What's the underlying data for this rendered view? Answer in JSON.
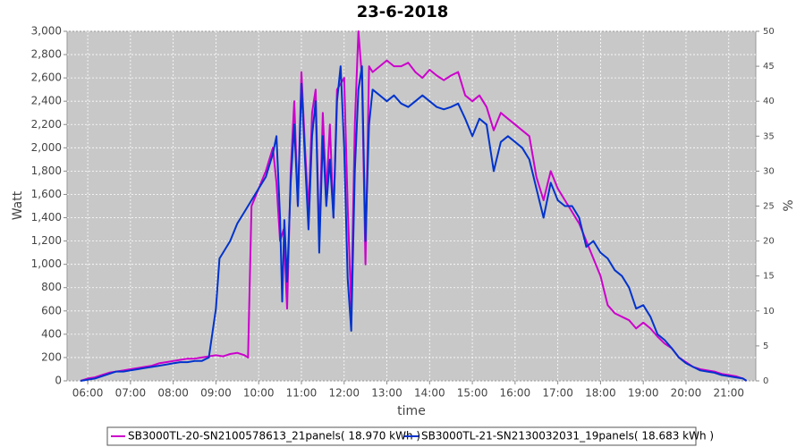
{
  "chart_data": {
    "type": "line",
    "title": "23-6-2018",
    "x_label": "time",
    "y_label": "Watt",
    "y2_label": "%",
    "xlim": [
      "05:31",
      "21:38"
    ],
    "xticks": [
      "06:00",
      "07:00",
      "08:00",
      "09:00",
      "10:00",
      "11:00",
      "12:00",
      "13:00",
      "14:00",
      "15:00",
      "16:00",
      "17:00",
      "18:00",
      "19:00",
      "20:00",
      "21:00"
    ],
    "ylim": [
      0,
      3000
    ],
    "yticks": [
      0,
      200,
      400,
      600,
      800,
      {
        "value": 1000,
        "label": "1,000"
      },
      {
        "value": 1200,
        "label": "1,200"
      },
      {
        "value": 1400,
        "label": "1,400"
      },
      {
        "value": 1600,
        "label": "1,600"
      },
      {
        "value": 1800,
        "label": "1,800"
      },
      {
        "value": 2000,
        "label": "2,000"
      },
      {
        "value": 2200,
        "label": "2,200"
      },
      {
        "value": 2400,
        "label": "2,400"
      },
      {
        "value": 2600,
        "label": "2,600"
      },
      {
        "value": 2800,
        "label": "2,800"
      },
      {
        "value": 3000,
        "label": "3,000"
      }
    ],
    "y2lim": [
      0,
      50
    ],
    "y2ticks": [
      0,
      5,
      10,
      15,
      20,
      25,
      30,
      35,
      40,
      45,
      50
    ],
    "grid": true,
    "legend": "bottom",
    "series": [
      {
        "name": "SB3000TL-20-SN2100578613_21panels( 18.970 kWh )",
        "color": "#cc00cc",
        "x": [
          "05:50",
          "06:00",
          "06:10",
          "06:20",
          "06:30",
          "06:40",
          "06:50",
          "07:00",
          "07:10",
          "07:20",
          "07:30",
          "07:40",
          "07:50",
          "08:00",
          "08:10",
          "08:20",
          "08:30",
          "08:40",
          "08:50",
          "09:00",
          "09:10",
          "09:20",
          "09:30",
          "09:40",
          "09:45",
          "09:50",
          "10:00",
          "10:10",
          "10:20",
          "10:25",
          "10:30",
          "10:35",
          "10:40",
          "10:45",
          "10:50",
          "10:55",
          "11:00",
          "11:05",
          "11:10",
          "11:15",
          "11:20",
          "11:25",
          "11:30",
          "11:35",
          "11:40",
          "11:45",
          "11:50",
          "12:00",
          "12:05",
          "12:10",
          "12:15",
          "12:20",
          "12:25",
          "12:30",
          "12:35",
          "12:40",
          "12:50",
          "13:00",
          "13:10",
          "13:20",
          "13:30",
          "13:40",
          "13:50",
          "14:00",
          "14:10",
          "14:20",
          "14:30",
          "14:40",
          "14:50",
          "15:00",
          "15:10",
          "15:20",
          "15:30",
          "15:40",
          "15:50",
          "16:00",
          "16:10",
          "16:20",
          "16:30",
          "16:40",
          "16:50",
          "17:00",
          "17:10",
          "17:20",
          "17:30",
          "17:40",
          "17:50",
          "18:00",
          "18:10",
          "18:20",
          "18:30",
          "18:40",
          "18:50",
          "19:00",
          "19:10",
          "19:20",
          "19:30",
          "19:40",
          "19:50",
          "20:00",
          "20:10",
          "20:20",
          "20:30",
          "20:40",
          "20:50",
          "21:00",
          "21:10",
          "21:20",
          "21:25"
        ],
        "values": [
          0,
          20,
          30,
          50,
          70,
          80,
          90,
          100,
          110,
          120,
          130,
          150,
          160,
          170,
          180,
          190,
          190,
          200,
          210,
          220,
          210,
          230,
          240,
          220,
          200,
          1500,
          1650,
          1800,
          2000,
          1700,
          1200,
          1300,
          620,
          1800,
          2400,
          1500,
          2650,
          2000,
          1450,
          2300,
          2500,
          1200,
          2300,
          1600,
          2200,
          1400,
          2500,
          2600,
          1500,
          620,
          2200,
          3000,
          2600,
          1000,
          2700,
          2650,
          2700,
          2750,
          2700,
          2700,
          2730,
          2650,
          2600,
          2670,
          2620,
          2580,
          2620,
          2650,
          2450,
          2400,
          2450,
          2350,
          2150,
          2300,
          2250,
          2200,
          2150,
          2100,
          1750,
          1550,
          1800,
          1650,
          1550,
          1450,
          1350,
          1200,
          1050,
          900,
          650,
          580,
          550,
          520,
          450,
          500,
          450,
          380,
          320,
          280,
          200,
          160,
          120,
          100,
          90,
          80,
          60,
          50,
          40,
          20,
          0
        ]
      },
      {
        "name": "SB3000TL-21-SN2130032031_19panels( 18.683 kWh )",
        "color": "#0033cc",
        "x": [
          "05:50",
          "06:00",
          "06:10",
          "06:20",
          "06:30",
          "06:40",
          "06:50",
          "07:00",
          "07:10",
          "07:20",
          "07:30",
          "07:40",
          "07:50",
          "08:00",
          "08:10",
          "08:20",
          "08:30",
          "08:40",
          "08:50",
          "09:00",
          "09:05",
          "09:10",
          "09:20",
          "09:30",
          "09:40",
          "09:50",
          "10:00",
          "10:10",
          "10:20",
          "10:25",
          "10:30",
          "10:33",
          "10:36",
          "10:40",
          "10:45",
          "10:50",
          "10:55",
          "11:00",
          "11:05",
          "11:10",
          "11:15",
          "11:20",
          "11:25",
          "11:30",
          "11:35",
          "11:40",
          "11:45",
          "11:50",
          "11:55",
          "12:00",
          "12:05",
          "12:10",
          "12:15",
          "12:20",
          "12:25",
          "12:30",
          "12:35",
          "12:40",
          "12:50",
          "13:00",
          "13:10",
          "13:20",
          "13:30",
          "13:40",
          "13:50",
          "14:00",
          "14:10",
          "14:20",
          "14:30",
          "14:40",
          "14:50",
          "15:00",
          "15:10",
          "15:20",
          "15:30",
          "15:40",
          "15:50",
          "16:00",
          "16:10",
          "16:20",
          "16:30",
          "16:40",
          "16:50",
          "17:00",
          "17:10",
          "17:20",
          "17:30",
          "17:40",
          "17:50",
          "18:00",
          "18:10",
          "18:20",
          "18:30",
          "18:40",
          "18:50",
          "19:00",
          "19:10",
          "19:20",
          "19:30",
          "19:40",
          "19:50",
          "20:00",
          "20:10",
          "20:20",
          "20:30",
          "20:40",
          "20:50",
          "21:00",
          "21:10",
          "21:20",
          "21:25"
        ],
        "values": [
          0,
          10,
          20,
          40,
          60,
          80,
          80,
          90,
          100,
          110,
          120,
          130,
          140,
          150,
          160,
          160,
          170,
          170,
          200,
          620,
          1050,
          1100,
          1200,
          1350,
          1450,
          1550,
          1650,
          1750,
          1950,
          2100,
          1400,
          680,
          1380,
          850,
          1700,
          2200,
          1500,
          2550,
          1900,
          1300,
          2100,
          2400,
          1100,
          2100,
          1500,
          1900,
          1400,
          2400,
          2700,
          2000,
          880,
          430,
          1800,
          2500,
          2700,
          1200,
          2200,
          2500,
          2450,
          2400,
          2450,
          2380,
          2350,
          2400,
          2450,
          2400,
          2350,
          2330,
          2350,
          2380,
          2250,
          2100,
          2250,
          2200,
          1800,
          2050,
          2100,
          2050,
          2000,
          1900,
          1650,
          1400,
          1700,
          1550,
          1500,
          1500,
          1400,
          1150,
          1200,
          1100,
          1050,
          950,
          900,
          800,
          620,
          650,
          550,
          400,
          350,
          280,
          200,
          150,
          120,
          90,
          80,
          70,
          50,
          40,
          30,
          20,
          0
        ]
      }
    ]
  }
}
